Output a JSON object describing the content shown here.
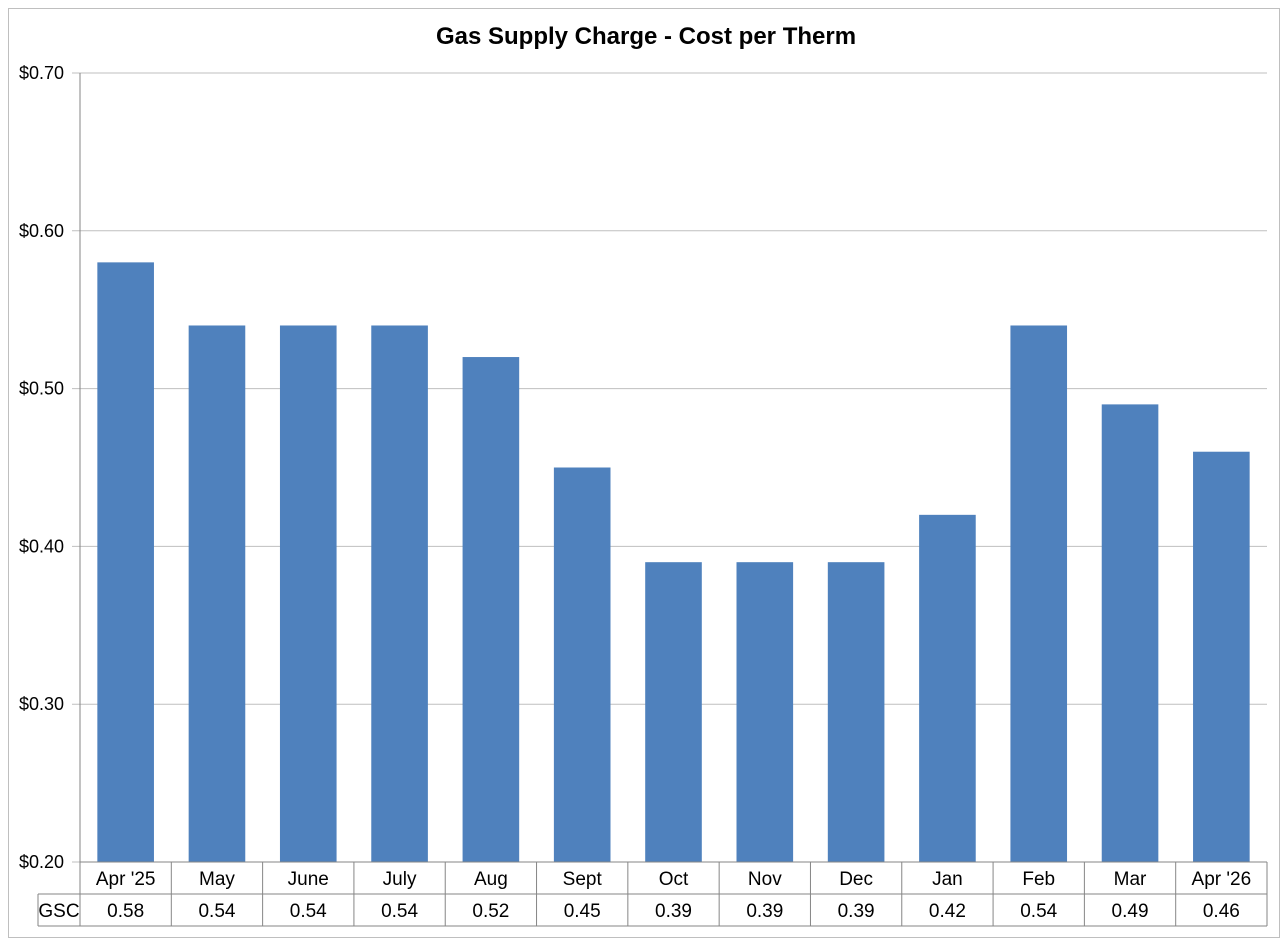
{
  "chart_data": {
    "type": "bar",
    "title": "Gas Supply Charge - Cost per Therm",
    "xlabel": "",
    "ylabel": "",
    "categories": [
      "Apr '25",
      "May",
      "June",
      "July",
      "Aug",
      "Sept",
      "Oct",
      "Nov",
      "Dec",
      "Jan",
      "Feb",
      "Mar",
      "Apr '26"
    ],
    "series": [
      {
        "name": "GSC",
        "values": [
          0.58,
          0.54,
          0.54,
          0.54,
          0.52,
          0.45,
          0.39,
          0.39,
          0.39,
          0.42,
          0.54,
          0.49,
          0.46
        ]
      }
    ],
    "value_labels": [
      "0.58",
      "0.54",
      "0.54",
      "0.54",
      "0.52",
      "0.45",
      "0.39",
      "0.39",
      "0.39",
      "0.42",
      "0.54",
      "0.49",
      "0.46"
    ],
    "ylim": [
      0.2,
      0.7
    ],
    "yticks": [
      0.2,
      0.3,
      0.4,
      0.5,
      0.6,
      0.7
    ],
    "ytick_labels": [
      "$0.20",
      "$0.30",
      "$0.40",
      "$0.50",
      "$0.60",
      "$0.70"
    ],
    "grid": true,
    "legend": "data-table",
    "colors": {
      "bar": "#4f81bd",
      "grid": "#bfbfbf",
      "axis": "#868686"
    }
  }
}
